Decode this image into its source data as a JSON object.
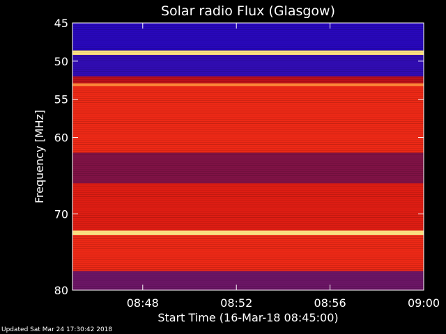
{
  "footer_text": "Updated Sat Mar 24 17:30:42 2018",
  "chart_data": {
    "type": "heatmap",
    "title": "Solar radio Flux (Glasgow)",
    "xlabel": "Start Time (16-Mar-18 08:45:00)",
    "ylabel": "Frequency [MHz]",
    "xlim": [
      "08:45:00",
      "09:00:00"
    ],
    "ylim": [
      45,
      80
    ],
    "x_ticks": [
      "08:48",
      "08:52",
      "08:56",
      "09:00"
    ],
    "y_ticks": [
      45,
      50,
      55,
      60,
      70,
      80
    ],
    "grid": false,
    "colormap": [
      "#1a00c8",
      "#4a1a9a",
      "#8c1030",
      "#d01010",
      "#ff3a1a",
      "#ff9a40",
      "#ffffa0"
    ],
    "bands": [
      {
        "from": 45.0,
        "to": 48.6,
        "level": 0.05
      },
      {
        "from": 48.6,
        "to": 49.2,
        "level": 0.95
      },
      {
        "from": 49.2,
        "to": 52.0,
        "level": 0.08
      },
      {
        "from": 52.0,
        "to": 52.9,
        "level": 0.45
      },
      {
        "from": 52.9,
        "to": 53.3,
        "level": 0.8
      },
      {
        "from": 53.3,
        "to": 62.0,
        "level": 0.6
      },
      {
        "from": 62.0,
        "to": 66.0,
        "level": 0.3
      },
      {
        "from": 66.0,
        "to": 72.2,
        "level": 0.55
      },
      {
        "from": 72.2,
        "to": 72.8,
        "level": 0.95
      },
      {
        "from": 72.8,
        "to": 77.5,
        "level": 0.6
      },
      {
        "from": 77.5,
        "to": 80.0,
        "level": 0.25
      }
    ]
  }
}
